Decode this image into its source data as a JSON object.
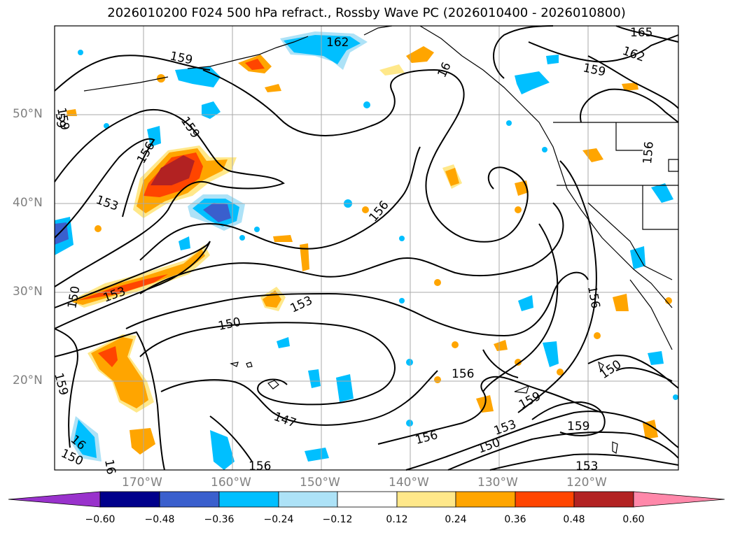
{
  "title": "2026010200 F024 500 hPa refract., Rossby Wave PC (2026010400 - 2026010800)",
  "colors": {
    "ocean": "#ffffff",
    "grid": "#a9a9a9",
    "contour": "#000000",
    "tick_label": "#808080"
  },
  "axes": {
    "lat_labels": [
      "50°N",
      "40°N",
      "30°N",
      "20°N"
    ],
    "lon_labels": [
      "170°W",
      "160°W",
      "150°W",
      "140°W",
      "130°W",
      "120°W"
    ]
  },
  "contour_labels": [
    "165",
    "162",
    "162",
    "159",
    "159",
    "159",
    "159",
    "159",
    "159",
    "159",
    "156",
    "156",
    "156",
    "156",
    "156",
    "156",
    "156",
    "153",
    "153",
    "153",
    "153",
    "153",
    "150",
    "150",
    "150",
    "150",
    "150",
    "147",
    "16",
    "16",
    "16",
    "59"
  ],
  "colorbar": {
    "ticks": [
      "−0.60",
      "−0.48",
      "−0.36",
      "−0.24",
      "−0.12",
      "0.12",
      "0.24",
      "0.36",
      "0.48",
      "0.60"
    ],
    "colors": [
      "#9932cc",
      "#00008b",
      "#3a5fcd",
      "#00bfff",
      "#ade2f7",
      "#ffffff",
      "#ffe88a",
      "#ffa500",
      "#ff4500",
      "#b22222",
      "#ff88aa"
    ]
  }
}
